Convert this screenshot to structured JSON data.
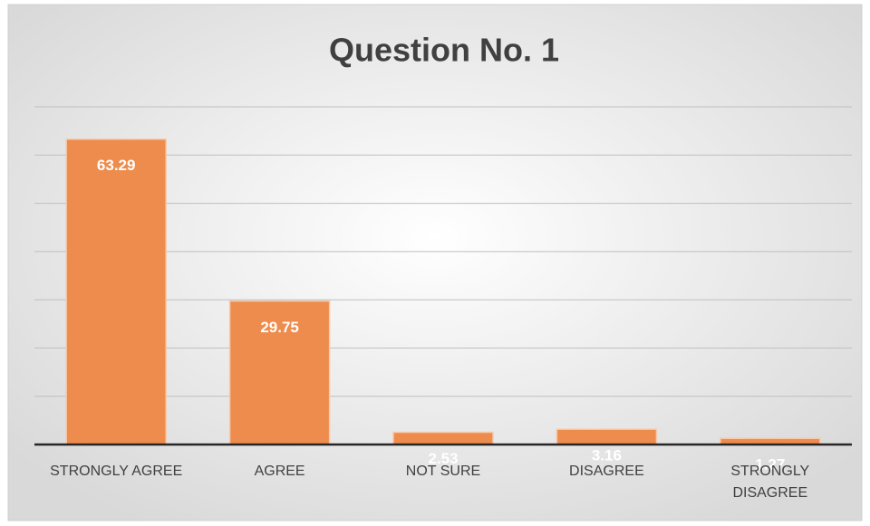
{
  "chart_data": {
    "type": "bar",
    "title": "Question No. 1",
    "categories": [
      "STRONGLY AGREE",
      "AGREE",
      "NOT SURE",
      "DISAGREE",
      "STRONGLY DISAGREE"
    ],
    "values": [
      63.29,
      29.75,
      2.53,
      3.16,
      1.27
    ],
    "color": "#ee8c4d",
    "ylim": [
      0,
      70
    ],
    "yticks": [
      0,
      10,
      20,
      30,
      40,
      50,
      60,
      70
    ],
    "grid": true
  }
}
